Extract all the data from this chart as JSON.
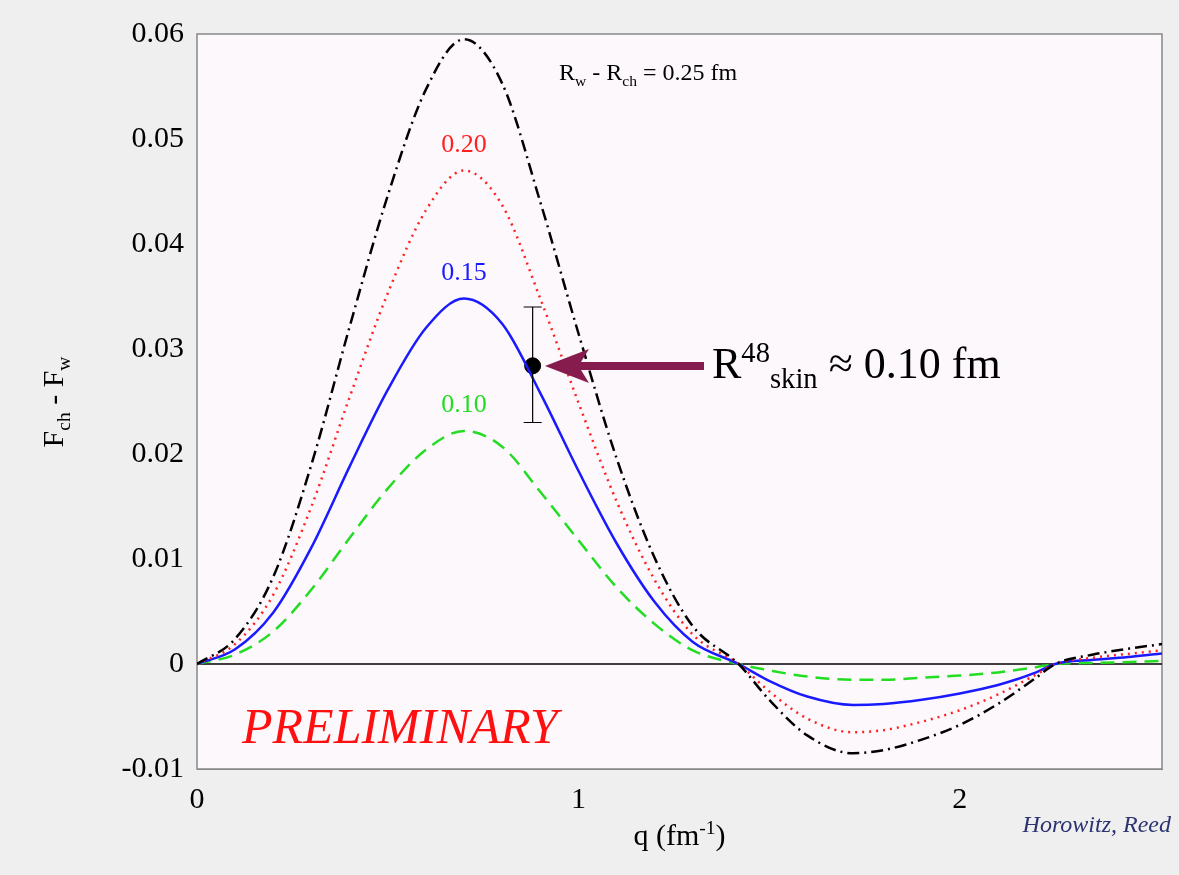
{
  "chart_data": {
    "type": "line",
    "xlabel": "q (fm$^{-1}$)",
    "ylabel": "F$_{ch}$ - F$_{w}$",
    "xlim": [
      0,
      2.53
    ],
    "ylim": [
      -0.01,
      0.06
    ],
    "xticks": [
      0,
      1,
      2
    ],
    "yticks": [
      -0.01,
      0,
      0.01,
      0.02,
      0.03,
      0.04,
      0.05,
      0.06
    ],
    "grid": false,
    "legend": false,
    "marker": "none",
    "x": [
      0,
      0.1,
      0.2,
      0.3,
      0.4,
      0.5,
      0.6,
      0.7,
      0.8,
      0.9,
      1.0,
      1.1,
      1.2,
      1.3,
      1.42,
      1.5,
      1.6,
      1.72,
      1.8,
      1.9,
      2.0,
      2.1,
      2.2,
      2.25,
      2.35,
      2.45,
      2.53
    ],
    "series": [
      {
        "name": "R$_{w}$ - R$_{ch}$ = 0.25 fm",
        "color": "#000000",
        "line_style": "dashdot",
        "values": [
          0,
          0.0024,
          0.0083,
          0.019,
          0.0321,
          0.0446,
          0.0547,
          0.0595,
          0.0553,
          0.044,
          0.0315,
          0.0196,
          0.0101,
          0.0036,
          0,
          -0.0034,
          -0.0068,
          -0.0085,
          -0.0082,
          -0.0072,
          -0.0058,
          -0.0038,
          -0.0013,
          0,
          0.0009,
          0.0015,
          0.0019
        ]
      },
      {
        "name": "0.20",
        "color": "#ff2020",
        "line_style": "dotted",
        "values": [
          0,
          0.0019,
          0.0066,
          0.015,
          0.0254,
          0.0353,
          0.0432,
          0.047,
          0.0437,
          0.0348,
          0.0249,
          0.0155,
          0.008,
          0.0028,
          0,
          -0.0026,
          -0.0052,
          -0.0065,
          -0.0063,
          -0.0055,
          -0.0044,
          -0.0029,
          -0.001,
          0,
          0.0006,
          0.001,
          0.0013
        ]
      },
      {
        "name": "0.15",
        "color": "#1a1aff",
        "line_style": "solid",
        "values": [
          0,
          0.0014,
          0.0049,
          0.0111,
          0.0188,
          0.0261,
          0.032,
          0.0348,
          0.0324,
          0.0258,
          0.0184,
          0.0115,
          0.0059,
          0.0021,
          0,
          -0.0016,
          -0.0031,
          -0.0039,
          -0.0038,
          -0.0034,
          -0.0028,
          -0.002,
          -0.0008,
          0,
          0.0004,
          0.0007,
          0.001
        ]
      },
      {
        "name": "0.10",
        "color": "#22dd22",
        "line_style": "dashed",
        "values": [
          0,
          0.0009,
          0.0031,
          0.0071,
          0.012,
          0.0167,
          0.0204,
          0.0222,
          0.0207,
          0.0164,
          0.0118,
          0.0073,
          0.0038,
          0.0013,
          0,
          -0.0006,
          -0.0012,
          -0.0015,
          -0.0015,
          -0.0013,
          -0.0011,
          -0.0008,
          -0.0003,
          0,
          0.0001,
          0.0002,
          0.0003
        ]
      },
      {
        "type": "scatter",
        "color": "#000000",
        "marker": "circle",
        "x": [
          0.88
        ],
        "values": [
          0.0284
        ],
        "errors": [
          [
            0.023,
            0.034
          ]
        ]
      }
    ],
    "ref_lines": [
      {
        "axis": "y",
        "value": 0,
        "color": "#000000"
      }
    ],
    "annotations": [
      "R$^{48}$$_{skin}$ ≈ 0.10 fm",
      "PRELIMINARY",
      "Horowitz, Reed"
    ]
  }
}
